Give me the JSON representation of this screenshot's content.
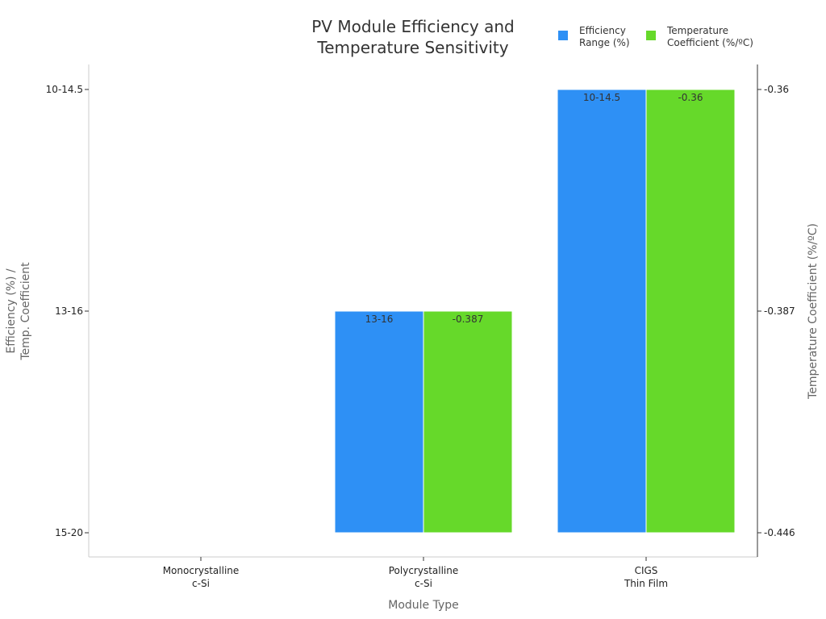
{
  "chart_data": {
    "type": "bar",
    "title": [
      "PV Module Efficiency and",
      "Temperature Sensitivity"
    ],
    "xlabel": "Module Type",
    "ylabel_left": [
      "Efficiency (%) /",
      "Temp. Coefficient"
    ],
    "ylabel_right": "Temperature Coefficient (%/ºC)",
    "categories": [
      [
        "Monocrystalline",
        "c-Si"
      ],
      [
        "Polycrystalline",
        "c-Si"
      ],
      [
        "CIGS",
        "Thin Film"
      ]
    ],
    "left_axis": {
      "ticks": [
        "15-20",
        "13-16",
        "10-14.5"
      ]
    },
    "right_axis": {
      "ticks": [
        "-0.446",
        "-0.387",
        "-0.36"
      ]
    },
    "series": [
      {
        "name": [
          "Efficiency",
          "Range (%)"
        ],
        "color": "#2e90f5",
        "values": [
          "15-20",
          "13-16",
          "10-14.5"
        ],
        "value_labels": [
          "",
          "13-16",
          "10-14.5"
        ]
      },
      {
        "name": [
          "Temperature",
          "Coefficient (%/ºC)"
        ],
        "color": "#66d92a",
        "values": [
          -0.446,
          -0.387,
          -0.36
        ],
        "value_labels": [
          "",
          "-0.387",
          "-0.36"
        ]
      }
    ],
    "legend": "top-right",
    "grid": false
  }
}
